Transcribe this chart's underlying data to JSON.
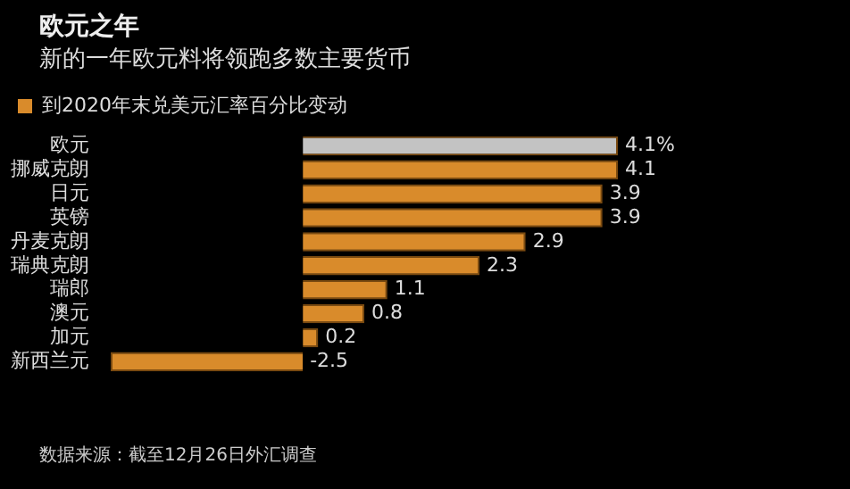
{
  "chart_data": {
    "type": "bar",
    "orientation": "horizontal",
    "title": "欧元之年",
    "subtitle": "新的一年欧元料将领跑多数主要货币",
    "categories": [
      "欧元",
      "挪威克朗",
      "日元",
      "英镑",
      "丹麦克朗",
      "瑞典克朗",
      "瑞郎",
      "澳元",
      "加元",
      "新西兰元"
    ],
    "series": [
      {
        "name": "到2020年末兑美元汇率百分比变动",
        "color": "#d98b2b",
        "values": [
          4.1,
          4.1,
          3.9,
          3.9,
          2.9,
          2.3,
          1.1,
          0.8,
          0.2,
          -2.5
        ],
        "colors": [
          "#c3c3c3",
          "#d98b2b",
          "#d98b2b",
          "#d98b2b",
          "#d98b2b",
          "#d98b2b",
          "#d98b2b",
          "#d98b2b",
          "#d98b2b",
          "#d98b2b"
        ],
        "value_labels": [
          "4.1%",
          "4.1",
          "3.9",
          "3.9",
          "2.9",
          "2.3",
          "1.1",
          "0.8",
          "0.2",
          "-2.5"
        ]
      }
    ],
    "legend": "top left",
    "annotations": [
      "数据来源：截至12月26日外汇调查"
    ]
  }
}
